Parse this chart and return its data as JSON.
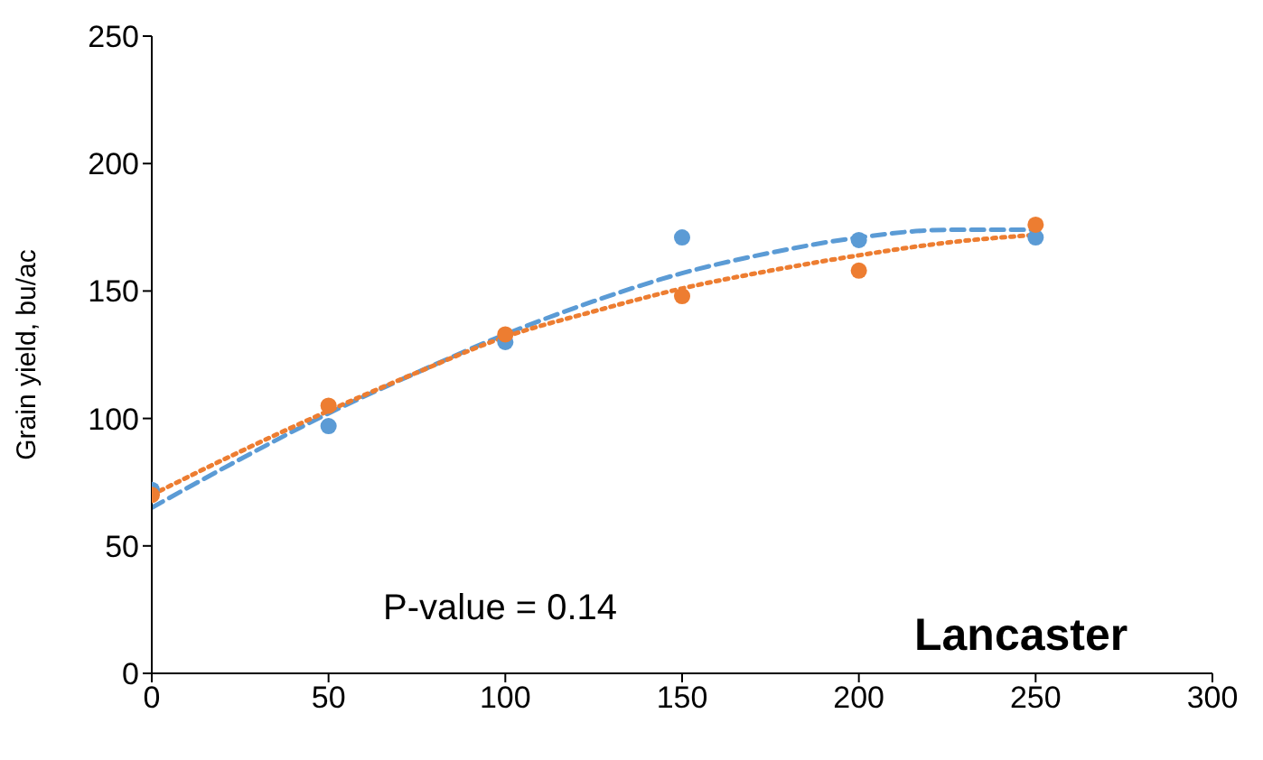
{
  "chart_data": {
    "type": "scatter",
    "ylabel": "Grain yield, bu/ac",
    "xlim": [
      0,
      300
    ],
    "xticks": [
      0,
      50,
      100,
      150,
      200,
      250,
      300
    ],
    "ylim": [
      0,
      250
    ],
    "yticks": [
      0,
      50,
      100,
      150,
      200,
      250
    ],
    "grid": false,
    "annotations": [
      "P-value = 0.14",
      "Lancaster"
    ],
    "series": [
      {
        "color": "#5b9bd5",
        "marker": "circle",
        "x": [
          0,
          50,
          100,
          150,
          200,
          250
        ],
        "values": [
          72,
          97,
          130,
          171,
          170,
          171
        ]
      },
      {
        "color": "#ed7d31",
        "marker": "circle",
        "x": [
          0,
          50,
          100,
          150,
          200,
          250
        ],
        "values": [
          70,
          105,
          133,
          148,
          158,
          176
        ]
      },
      {
        "type": "line",
        "color": "#5b9bd5",
        "line_style": "dashed",
        "marker": "none",
        "x": [
          0,
          25,
          50,
          75,
          100,
          125,
          150,
          175,
          200,
          225,
          250
        ],
        "values": [
          65,
          84,
          102,
          118,
          133,
          146,
          157,
          165,
          171,
          174,
          174
        ]
      },
      {
        "type": "line",
        "color": "#ed7d31",
        "line_style": "dotted",
        "marker": "none",
        "x": [
          0,
          25,
          50,
          75,
          100,
          125,
          150,
          175,
          200,
          225,
          250
        ],
        "values": [
          70,
          87,
          103,
          118,
          132,
          142,
          151,
          158,
          164,
          169,
          172
        ]
      }
    ]
  }
}
